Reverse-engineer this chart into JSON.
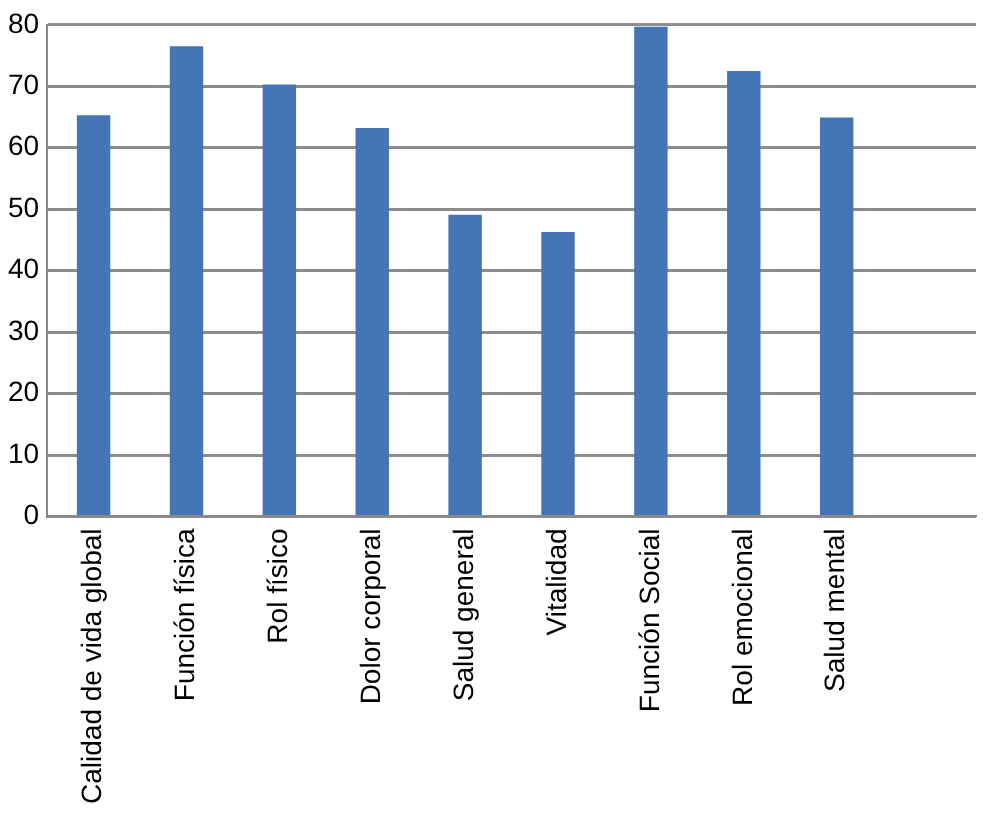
{
  "chart_data": {
    "type": "bar",
    "categories": [
      "Calidad de vida global",
      "Función física",
      "Rol físico",
      "Dolor corporal",
      "Salud general",
      "Vitalidad",
      "Función Social",
      "Rol emocional",
      "Salud mental",
      null
    ],
    "values": [
      65.3,
      76.5,
      70.3,
      63.2,
      49.1,
      46.3,
      79.7,
      72.5,
      64.9,
      null
    ],
    "color": "#4675b6",
    "ylim": [
      0,
      80
    ],
    "yticks": [
      0,
      10,
      20,
      30,
      40,
      50,
      60,
      70,
      80
    ],
    "grid": "y"
  }
}
